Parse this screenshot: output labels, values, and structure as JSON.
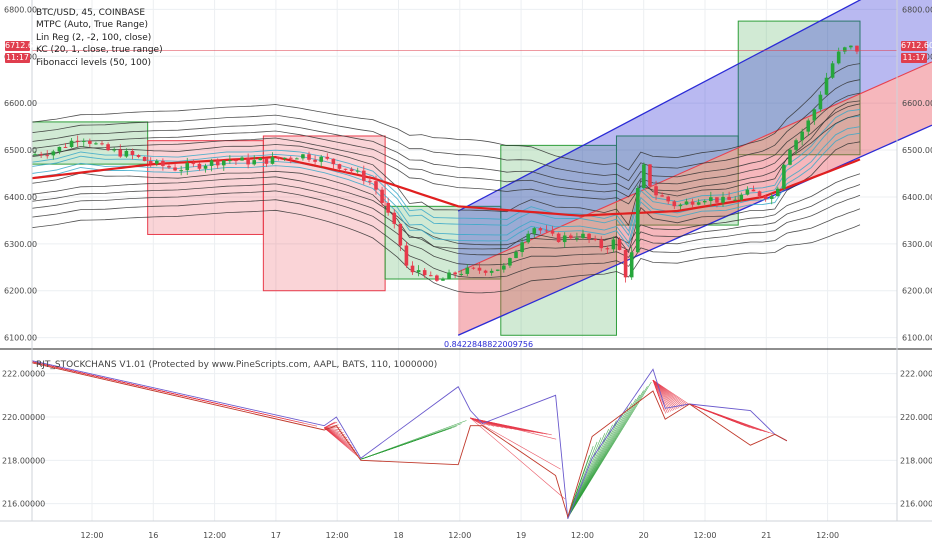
{
  "legend": {
    "symbol": "BTC/USD, 45, COINBASE",
    "indicators": [
      "MTPC (Auto, True Range)",
      "Lin Reg (2, -2, 100, close)",
      "KC (20, 1, close, true range)",
      "Fibonacci levels (50, 100)"
    ]
  },
  "last_price": {
    "price": "6712.60",
    "countdown": "11:17"
  },
  "regression_value_label": "0.8422848822009756",
  "sub_indicator_title": "RJT_STOCKCHANS V1.01 (Protected by www.PineScripts.com, AAPL, BATS, 110, 1000000)",
  "colors": {
    "green_box": "#2e9e3a",
    "red_box": "#e83b4a",
    "blue_channel": "#2b2bd6",
    "red_channel": "#e8414f",
    "ma_red": "#e01f1f",
    "band_gray": "#333333",
    "band_cyan": "#3aa8c8",
    "price_tag": "#e03e4e"
  },
  "chart_data": [
    {
      "type": "candlestick",
      "ylim": [
        6080,
        6820
      ],
      "y_ticks": [
        "6800.00",
        "6700.00",
        "6600.00",
        "6500.00",
        "6400.00",
        "6300.00",
        "6200.00",
        "6100.00"
      ],
      "x_ticks": [
        "12:00",
        "16",
        "12:00",
        "17",
        "12:00",
        "18",
        "12:00",
        "19",
        "12:00",
        "20",
        "12:00",
        "21",
        "12:00"
      ],
      "price_path": [
        [
          0,
          6490
        ],
        [
          4,
          6500
        ],
        [
          8,
          6530
        ],
        [
          12,
          6500
        ],
        [
          16,
          6490
        ],
        [
          20,
          6470
        ],
        [
          24,
          6460
        ],
        [
          28,
          6470
        ],
        [
          32,
          6480
        ],
        [
          36,
          6475
        ],
        [
          40,
          6480
        ],
        [
          44,
          6490
        ],
        [
          48,
          6480
        ],
        [
          52,
          6460
        ],
        [
          56,
          6430
        ],
        [
          60,
          6320
        ],
        [
          62,
          6230
        ],
        [
          64,
          6250
        ],
        [
          66,
          6215
        ],
        [
          70,
          6240
        ],
        [
          74,
          6245
        ],
        [
          78,
          6250
        ],
        [
          80,
          6300
        ],
        [
          82,
          6340
        ],
        [
          86,
          6310
        ],
        [
          90,
          6320
        ],
        [
          94,
          6290
        ],
        [
          96,
          6310
        ],
        [
          98,
          6210
        ],
        [
          100,
          6480
        ],
        [
          102,
          6410
        ],
        [
          106,
          6380
        ],
        [
          110,
          6400
        ],
        [
          114,
          6390
        ],
        [
          118,
          6410
        ],
        [
          122,
          6400
        ],
        [
          124,
          6500
        ],
        [
          126,
          6530
        ],
        [
          128,
          6570
        ],
        [
          130,
          6640
        ],
        [
          132,
          6700
        ],
        [
          134,
          6720
        ],
        [
          136,
          6712
        ]
      ],
      "fibonacci_boxes": [
        {
          "color": "green",
          "x": [
            0,
            19
          ],
          "y": [
            6470,
            6560
          ]
        },
        {
          "color": "red",
          "x": [
            19,
            38
          ],
          "y": [
            6320,
            6520
          ]
        },
        {
          "color": "red",
          "x": [
            38,
            58
          ],
          "y": [
            6200,
            6530
          ]
        },
        {
          "color": "green",
          "x": [
            58,
            77
          ],
          "y": [
            6225,
            6380
          ]
        },
        {
          "color": "green",
          "x": [
            77,
            96
          ],
          "y": [
            6105,
            6510
          ]
        },
        {
          "color": "green",
          "x": [
            96,
            116
          ],
          "y": [
            6340,
            6530
          ]
        },
        {
          "color": "green",
          "x": [
            116,
            136
          ],
          "y": [
            6490,
            6775
          ]
        }
      ],
      "linreg_channel": {
        "x": [
          70,
          136
        ],
        "upper": [
          6370,
          6820
        ],
        "center": [
          6240,
          6620
        ],
        "lower": [
          6105,
          6485
        ]
      },
      "moving_average": [
        [
          0,
          6440
        ],
        [
          20,
          6470
        ],
        [
          40,
          6485
        ],
        [
          56,
          6440
        ],
        [
          70,
          6380
        ],
        [
          90,
          6360
        ],
        [
          106,
          6370
        ],
        [
          120,
          6400
        ],
        [
          136,
          6480
        ]
      ]
    },
    {
      "type": "line",
      "ylim": [
        215.2,
        223.0
      ],
      "y_ticks": [
        "222.00000",
        "220.00000",
        "218.00000",
        "216.00000"
      ],
      "fan_upper": [
        [
          0,
          222.6
        ],
        [
          48,
          219.6
        ],
        [
          50,
          220.0
        ],
        [
          54,
          218.1
        ],
        [
          70,
          221.4
        ],
        [
          72,
          220.3
        ],
        [
          74,
          219.7
        ],
        [
          86,
          221.0
        ],
        [
          88,
          215.3
        ],
        [
          92,
          218.1
        ],
        [
          102,
          222.2
        ],
        [
          104,
          220.4
        ],
        [
          108,
          220.6
        ],
        [
          118,
          220.3
        ],
        [
          122,
          219.2
        ],
        [
          124,
          218.9
        ]
      ],
      "fan_lower": [
        [
          0,
          222.5
        ],
        [
          48,
          219.4
        ],
        [
          50,
          219.6
        ],
        [
          54,
          218.0
        ],
        [
          70,
          217.8
        ],
        [
          72,
          219.6
        ],
        [
          74,
          219.6
        ],
        [
          86,
          217.3
        ],
        [
          88,
          215.4
        ],
        [
          92,
          219.1
        ],
        [
          102,
          221.2
        ],
        [
          104,
          219.9
        ],
        [
          108,
          220.6
        ],
        [
          118,
          218.7
        ],
        [
          122,
          219.2
        ],
        [
          124,
          218.9
        ]
      ]
    }
  ]
}
